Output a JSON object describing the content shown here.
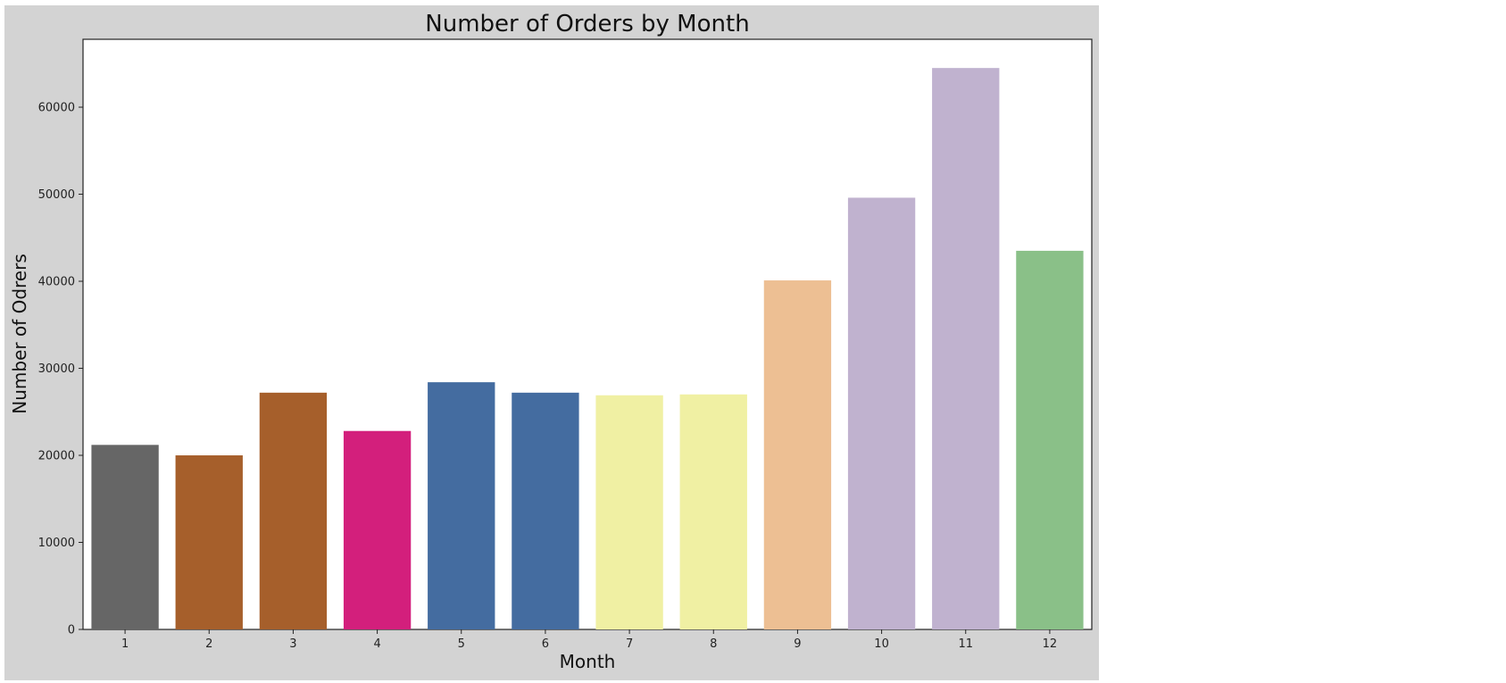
{
  "chart_data": {
    "type": "bar",
    "title": "Number of Orders by Month",
    "xlabel": "Month",
    "ylabel": "Number of Odrers",
    "categories": [
      "1",
      "2",
      "3",
      "4",
      "5",
      "6",
      "7",
      "8",
      "9",
      "10",
      "11",
      "12"
    ],
    "values": [
      21200,
      20000,
      27200,
      22800,
      28400,
      27200,
      26900,
      27000,
      40100,
      49600,
      64500,
      43500
    ],
    "colors": [
      "#666666",
      "#a65f2b",
      "#a65f2b",
      "#d31f7c",
      "#446ca0",
      "#446ca0",
      "#f0f0a3",
      "#f0f0a3",
      "#edbf93",
      "#c0b2cf",
      "#c0b2cf",
      "#8ac088"
    ],
    "ylim": [
      0,
      67800
    ],
    "yticks": [
      0,
      10000,
      20000,
      30000,
      40000,
      50000,
      60000
    ],
    "grid": false,
    "background": "#d3d3d3",
    "plot_background": "#ffffff"
  }
}
